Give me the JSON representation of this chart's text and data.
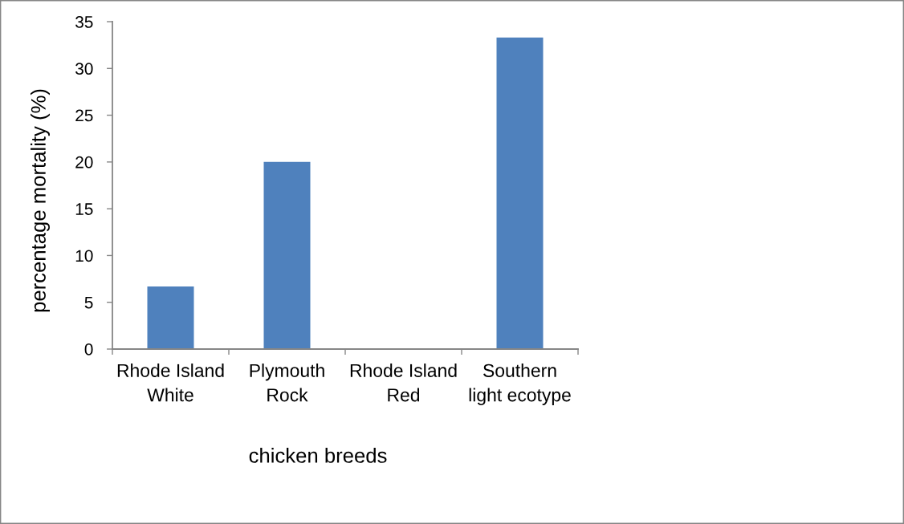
{
  "chart_data": {
    "type": "bar",
    "xlabel": "chicken breeds",
    "ylabel": "percentage mortality (%)",
    "categories": [
      "Rhode Island\nWhite",
      "Plymouth\nRock",
      "Rhode Island\nRed",
      "Southern\nlight ecotype"
    ],
    "values": [
      6.7,
      20,
      0,
      33.3
    ],
    "color": "#4f81bd",
    "ylim": [
      0,
      35
    ],
    "yticks": [
      0,
      5,
      10,
      15,
      20,
      25,
      30,
      35
    ]
  }
}
